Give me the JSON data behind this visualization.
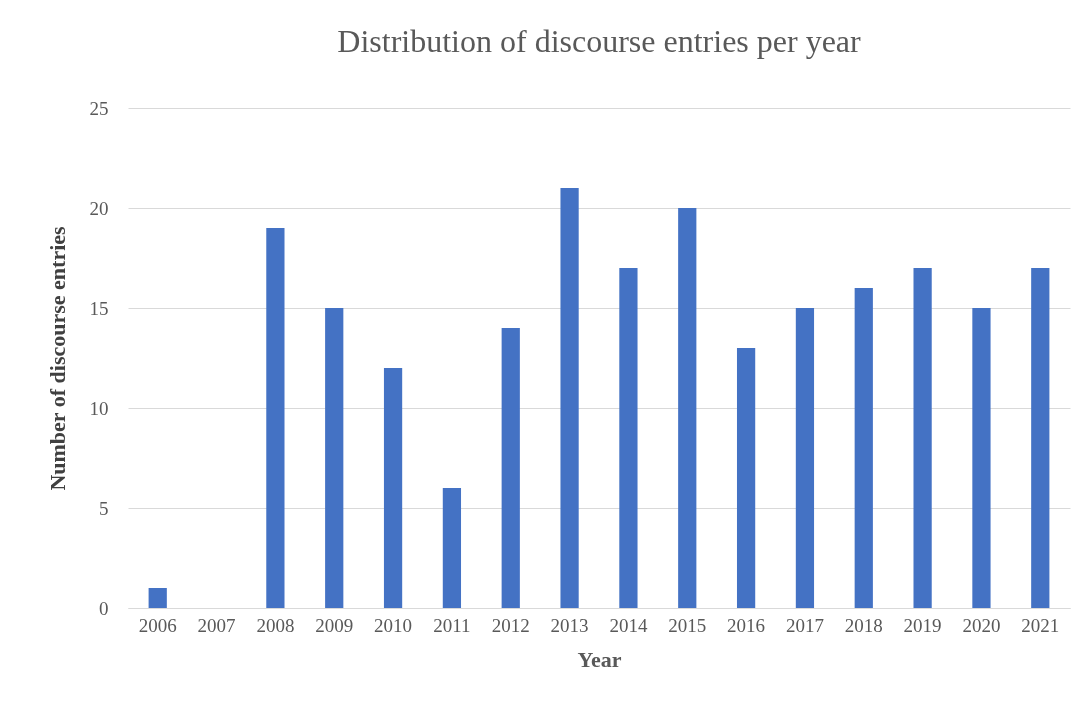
{
  "chart_data": {
    "type": "bar",
    "title": "Distribution of discourse entries per year",
    "xlabel": "Year",
    "ylabel": "Number of discourse entries",
    "categories": [
      "2006",
      "2007",
      "2008",
      "2009",
      "2010",
      "2011",
      "2012",
      "2013",
      "2014",
      "2015",
      "2016",
      "2017",
      "2018",
      "2019",
      "2020",
      "2021"
    ],
    "values": [
      1,
      0,
      19,
      15,
      12,
      6,
      14,
      21,
      17,
      20,
      13,
      15,
      16,
      17,
      15,
      17
    ],
    "color": "#4472c4",
    "ylim": [
      0,
      25
    ],
    "yticks": [
      0,
      5,
      10,
      15,
      20,
      25
    ],
    "grid": "y"
  }
}
